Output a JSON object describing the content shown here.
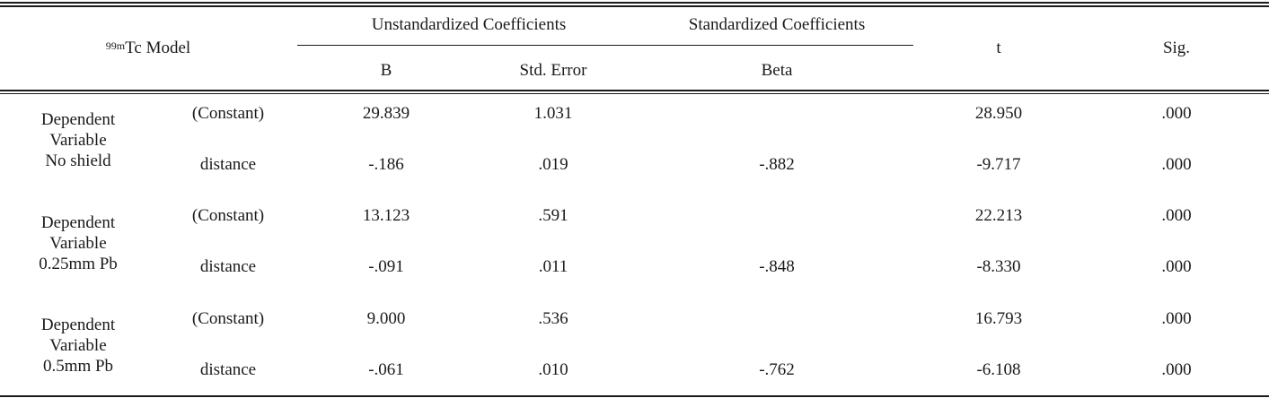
{
  "header": {
    "model_sup": "99m",
    "model_label": "Tc  Model",
    "unstd_group": "Unstandardized  Coefficients",
    "std_group": "Standardized  Coefficients",
    "col_b": "B",
    "col_std_error": "Std.  Error",
    "col_beta": "Beta",
    "col_t": "t",
    "col_sig": "Sig."
  },
  "groups": [
    {
      "line1": "Dependent",
      "line2": "Variable",
      "line3": "No  shield",
      "rows": [
        {
          "term": "(Constant)",
          "b": "29.839",
          "se": "1.031",
          "beta": "",
          "t": "28.950",
          "sig": ".000"
        },
        {
          "term": "distance",
          "b": "-.186",
          "se": ".019",
          "beta": "-.882",
          "t": "-9.717",
          "sig": ".000"
        }
      ]
    },
    {
      "line1": "Dependent",
      "line2": "Variable",
      "line3": "0.25mm  Pb",
      "rows": [
        {
          "term": "(Constant)",
          "b": "13.123",
          "se": ".591",
          "beta": "",
          "t": "22.213",
          "sig": ".000"
        },
        {
          "term": "distance",
          "b": "-.091",
          "se": ".011",
          "beta": "-.848",
          "t": "-8.330",
          "sig": ".000"
        }
      ]
    },
    {
      "line1": "Dependent",
      "line2": "Variable",
      "line3": "0.5mm  Pb",
      "rows": [
        {
          "term": "(Constant)",
          "b": "9.000",
          "se": ".536",
          "beta": "",
          "t": "16.793",
          "sig": ".000"
        },
        {
          "term": "distance",
          "b": "-.061",
          "se": ".010",
          "beta": "-.762",
          "t": "-6.108",
          "sig": ".000"
        }
      ]
    }
  ]
}
